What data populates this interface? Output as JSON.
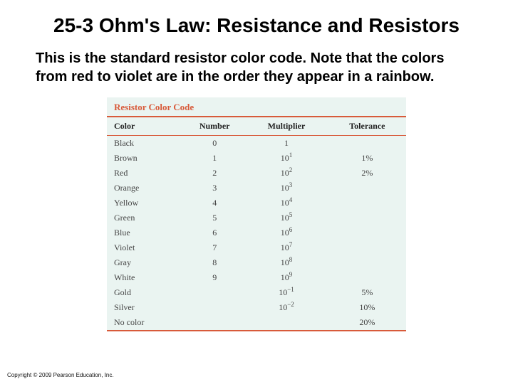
{
  "title": "25-3 Ohm's Law: Resistance and Resistors",
  "body": "This is the standard resistor color code. Note that the colors from red to violet are in the order they appear in a rainbow.",
  "table": {
    "caption": "Resistor Color Code",
    "caption_color": "#d85a3a",
    "rule_color": "#d85a3a",
    "background_color": "#eaf4f1",
    "font_family": "Georgia, 'Times New Roman', serif",
    "header_fontsize": 12,
    "cell_fontsize": 12,
    "columns": [
      "Color",
      "Number",
      "Multiplier",
      "Tolerance"
    ],
    "rows": [
      {
        "color": "Black",
        "number": "0",
        "mult_base": "1",
        "mult_exp": "",
        "tolerance": ""
      },
      {
        "color": "Brown",
        "number": "1",
        "mult_base": "10",
        "mult_exp": "1",
        "tolerance": "1%"
      },
      {
        "color": "Red",
        "number": "2",
        "mult_base": "10",
        "mult_exp": "2",
        "tolerance": "2%"
      },
      {
        "color": "Orange",
        "number": "3",
        "mult_base": "10",
        "mult_exp": "3",
        "tolerance": ""
      },
      {
        "color": "Yellow",
        "number": "4",
        "mult_base": "10",
        "mult_exp": "4",
        "tolerance": ""
      },
      {
        "color": "Green",
        "number": "5",
        "mult_base": "10",
        "mult_exp": "5",
        "tolerance": ""
      },
      {
        "color": "Blue",
        "number": "6",
        "mult_base": "10",
        "mult_exp": "6",
        "tolerance": ""
      },
      {
        "color": "Violet",
        "number": "7",
        "mult_base": "10",
        "mult_exp": "7",
        "tolerance": ""
      },
      {
        "color": "Gray",
        "number": "8",
        "mult_base": "10",
        "mult_exp": "8",
        "tolerance": ""
      },
      {
        "color": "White",
        "number": "9",
        "mult_base": "10",
        "mult_exp": "9",
        "tolerance": ""
      },
      {
        "color": "Gold",
        "number": "",
        "mult_base": "10",
        "mult_exp": "−1",
        "tolerance": "5%"
      },
      {
        "color": "Silver",
        "number": "",
        "mult_base": "10",
        "mult_exp": "−2",
        "tolerance": "10%"
      },
      {
        "color": "No color",
        "number": "",
        "mult_base": "",
        "mult_exp": "",
        "tolerance": "20%"
      }
    ]
  },
  "copyright": "Copyright © 2009 Pearson Education, Inc."
}
